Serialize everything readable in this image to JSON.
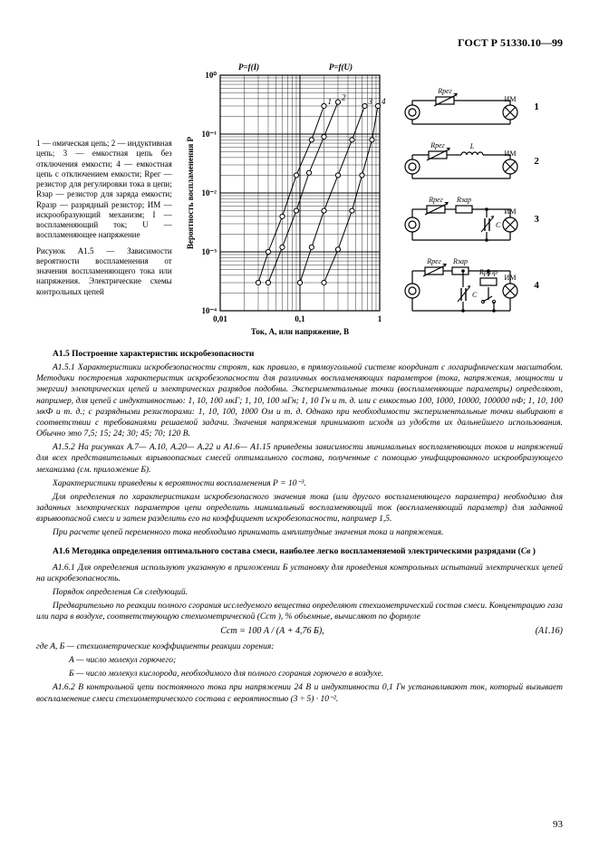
{
  "header": {
    "doc_id": "ГОСТ Р 51330.10—99"
  },
  "chart": {
    "type": "log-log-scatter",
    "title_top_left": "P=f(I)",
    "title_top_right": "P=f(U)",
    "ylabel": "Вероятность воспламенения P",
    "xlabel": "Ток, А, или напряжение, В",
    "xlim": [
      0.01,
      1
    ],
    "ylim": [
      0.0001,
      1
    ],
    "xticks": [
      "0,01",
      "0,1",
      "1"
    ],
    "yticks": [
      "10⁻⁴",
      "10⁻³",
      "10⁻²",
      "10⁻¹",
      "10⁰"
    ],
    "series": [
      {
        "label": "1",
        "marker": "circle",
        "xs": [
          0.03,
          0.04,
          0.06,
          0.09,
          0.14,
          0.2
        ],
        "ys": [
          0.0003,
          0.001,
          0.004,
          0.02,
          0.08,
          0.3
        ]
      },
      {
        "label": "2",
        "marker": "circle",
        "xs": [
          0.04,
          0.06,
          0.09,
          0.13,
          0.2,
          0.3
        ],
        "ys": [
          0.0003,
          0.0012,
          0.005,
          0.022,
          0.09,
          0.35
        ]
      },
      {
        "label": "3",
        "marker": "circle",
        "xs": [
          0.1,
          0.14,
          0.2,
          0.3,
          0.45,
          0.65
        ],
        "ys": [
          0.0003,
          0.0012,
          0.005,
          0.02,
          0.08,
          0.3
        ]
      },
      {
        "label": "4",
        "marker": "circle",
        "xs": [
          0.2,
          0.3,
          0.45,
          0.6,
          0.8,
          0.95
        ],
        "ys": [
          0.0003,
          0.0011,
          0.005,
          0.02,
          0.08,
          0.3
        ]
      }
    ],
    "grid_color": "#000000",
    "background_color": "#ffffff",
    "axis_color": "#000000",
    "marker_fill": "#ffffff",
    "marker_stroke": "#000000",
    "fontsize_axis": 9
  },
  "circuits": {
    "items": [
      {
        "num": "1",
        "top_label": "Rрег",
        "right_label": "ИМ",
        "elements": [
          "src",
          "var-res",
          "lamp"
        ]
      },
      {
        "num": "2",
        "top_label": "Rрег",
        "mid_label": "L",
        "right_label": "ИМ",
        "elements": [
          "src",
          "var-res",
          "inductor",
          "lamp"
        ]
      },
      {
        "num": "3",
        "top1": "Rрег",
        "top2": "Rзар",
        "c_label": "C",
        "right_label": "ИМ",
        "elements": [
          "src",
          "var-res",
          "res",
          "cap",
          "lamp"
        ]
      },
      {
        "num": "4",
        "top1": "Rрег",
        "top2": "Rзар",
        "c_label": "C",
        "r3": "Rразр",
        "right_label": "ИМ",
        "elements": [
          "src",
          "var-res",
          "res",
          "cap",
          "discharge",
          "lamp"
        ]
      }
    ],
    "stroke": "#000000",
    "fontsize": 8
  },
  "left_caption": {
    "legend": "1 — омическая цепь; 2 — индуктивная цепь; 3 — емкостная цепь без отключения емкости; 4 — емкостная цепь с отключением емкости; Rрег — резистор для регулировки тока в цепи; Rзар — резистор для заряда емкости; Rразр — разрядный резистор; ИМ — искрообразующий механизм; I — воспламеняющий ток; U — воспламеняющее напряжение",
    "title": "Рисунок А1.5 — Зависимости вероятности воспламенения от значения воспламеняющего тока или напряжения. Электрические схемы контрольных цепей"
  },
  "body": {
    "s15_title": "А1.5  Построение характеристик искробезопасности",
    "p151": "А1.5.1 Характеристики искробезопасности строят, как правило, в прямоугольной системе координат с логарифмическим масштабом. Методики построения характеристик искробезопасности для различных воспламеняющих параметров (тока, напряжения, мощности и энергии) электрических цепей и электрических разрядов подобны. Экспериментальные точки (воспламеняющие параметры) определяют, например, для цепей с индуктивностью: 1, 10, 100 мкГ; 1, 10, 100 мГн; 1, 10 Гн и т. д. или с емкостью 100, 1000, 10000, 100000 пФ; 1, 10, 100 мкФ и т. д.; с разрядными резисторами: 1, 10, 100, 1000 Ом и т. д. Однако при необходимости экспериментальные точки выбирают в соответствии с требованиями решаемой задачи. Значения напряжения принимают исходя из удобств их дальнейшего использования. Обычно это 7,5; 15; 24; 30; 45; 70; 120 В.",
    "p152": "А1.5.2 На рисунках А.7— А.10, А.20— А.22 и А1.6— А1.15 приведены зависимости минимальных воспламеняющих токов и напряжений для всех представительных взрывоопасных смесей оптимального состава, полученные с помощью унифицированного искрообразующего механизма (см. приложение Б).",
    "p152a": "Характеристики приведены к вероятности воспламенения Р = 10⁻³.",
    "p152b": "Для определения по характеристикам искробезопасного значения тока (или другого воспламеняющего параметра) необходимо для заданных электрических параметров цепи определить минимальный воспламеняющий ток (воспламеняющий параметр) для заданной взрывоопасной смеси и затем разделить его на коэффициент искробезопасности, например 1,5.",
    "p152c": "При расчете цепей переменного тока необходимо принимать амплитудные значения тока и напряжения.",
    "s16_title_a": "А1.6 Методика определения оптимального состава смеси, наиболее легко воспламеняемой электрическими разрядами (",
    "s16_title_b": "Cв",
    "s16_title_c": " )",
    "p161": "А1.6.1 Для определения используют указанную в приложении Б установку для проведения контрольных испытаний электрических цепей на искробезопасность.",
    "p161a": "Порядок определения Cв следующий.",
    "p161b": "Предварительно по реакции полного сгорания исследуемого вещества определяют стехиометрический состав смеси. Концентрацию газа или пара в воздухе, соответствующую стехиометрической (Cст ), % объемные, вычисляют по формуле",
    "formula": "Cст = 100 А / (А + 4,76 Б),",
    "formula_num": "(А1.16)",
    "pAB": "где А, Б — стехиометрические коэффициенты реакции горения:",
    "pA": "А — число молекул горючего;",
    "pB": "Б — число молекул кислорода, необходимого для полного сгорания горючего в воздухе.",
    "p162": "А1.6.2 В контрольной цепи постоянного тока при напряжении 24 В и индуктивности 0,1 Гн устанавливают ток, который вызывает воспламенение смеси стехиометрического состава с вероятностью (3 ÷ 5) · 10⁻².",
    "page_num": "93"
  }
}
